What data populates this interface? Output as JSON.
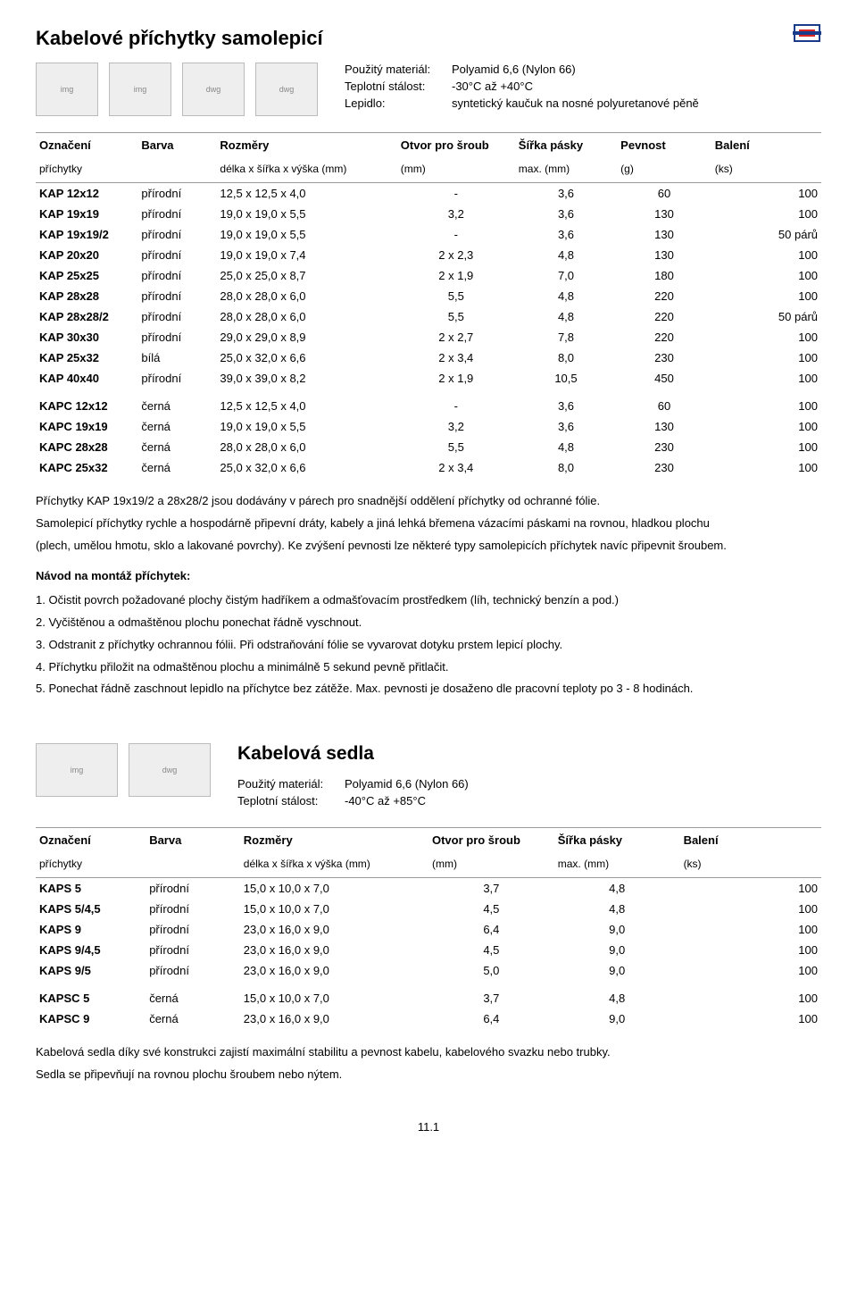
{
  "page_number": "11.1",
  "section1": {
    "title": "Kabelové příchytky samolepicí",
    "specs": [
      {
        "k": "Použitý materiál:",
        "v": "Polyamid 6,6 (Nylon 66)"
      },
      {
        "k": "Teplotní stálost:",
        "v": "-30°C až +40°C"
      },
      {
        "k": "Lepidlo:",
        "v": "syntetický kaučuk na nosné polyuretanové pěně"
      }
    ],
    "headers": [
      "Označení",
      "Barva",
      "Rozměry",
      "Otvor pro šroub",
      "Šířka pásky",
      "Pevnost",
      "Balení"
    ],
    "subheaders": [
      "příchytky",
      "",
      "délka x šířka x výška (mm)",
      "(mm)",
      "max. (mm)",
      "(g)",
      "(ks)"
    ],
    "groups": [
      [
        {
          "c": [
            "KAP 12x12",
            "přírodní",
            "12,5 x 12,5 x 4,0",
            "-",
            "3,6",
            "60",
            "100"
          ]
        },
        {
          "c": [
            "KAP 19x19",
            "přírodní",
            "19,0 x 19,0 x 5,5",
            "3,2",
            "3,6",
            "130",
            "100"
          ]
        },
        {
          "c": [
            "KAP 19x19/2",
            "přírodní",
            "19,0 x 19,0 x 5,5",
            "-",
            "3,6",
            "130",
            "50 párů"
          ]
        },
        {
          "c": [
            "KAP 20x20",
            "přírodní",
            "19,0 x 19,0 x 7,4",
            "2 x 2,3",
            "4,8",
            "130",
            "100"
          ]
        },
        {
          "c": [
            "KAP 25x25",
            "přírodní",
            "25,0 x 25,0 x 8,7",
            "2 x 1,9",
            "7,0",
            "180",
            "100"
          ]
        },
        {
          "c": [
            "KAP 28x28",
            "přírodní",
            "28,0 x 28,0 x 6,0",
            "5,5",
            "4,8",
            "220",
            "100"
          ]
        },
        {
          "c": [
            "KAP 28x28/2",
            "přírodní",
            "28,0 x 28,0 x 6,0",
            "5,5",
            "4,8",
            "220",
            "50 párů"
          ]
        },
        {
          "c": [
            "KAP 30x30",
            "přírodní",
            "29,0 x 29,0 x 8,9",
            "2 x 2,7",
            "7,8",
            "220",
            "100"
          ]
        },
        {
          "c": [
            "KAP 25x32",
            "bílá",
            "25,0 x 32,0 x 6,6",
            "2 x 3,4",
            "8,0",
            "230",
            "100"
          ]
        },
        {
          "c": [
            "KAP 40x40",
            "přírodní",
            "39,0 x 39,0 x 8,2",
            "2 x 1,9",
            "10,5",
            "450",
            "100"
          ]
        }
      ],
      [
        {
          "c": [
            "KAPC 12x12",
            "černá",
            "12,5 x 12,5 x 4,0",
            "-",
            "3,6",
            "60",
            "100"
          ]
        },
        {
          "c": [
            "KAPC 19x19",
            "černá",
            "19,0 x 19,0 x 5,5",
            "3,2",
            "3,6",
            "130",
            "100"
          ]
        },
        {
          "c": [
            "KAPC 28x28",
            "černá",
            "28,0 x 28,0 x 6,0",
            "5,5",
            "4,8",
            "230",
            "100"
          ]
        },
        {
          "c": [
            "KAPC 25x32",
            "černá",
            "25,0 x 32,0 x 6,6",
            "2 x 3,4",
            "8,0",
            "230",
            "100"
          ]
        }
      ]
    ],
    "notes_lead": [
      "Příchytky KAP 19x19/2 a 28x28/2 jsou dodávány v párech pro snadnější oddělení příchytky od ochranné fólie.",
      "Samolepicí příchytky rychle a hospodárně připevní dráty, kabely a jiná lehká břemena vázacími páskami na rovnou, hladkou plochu",
      "(plech, umělou hmotu, sklo a lakované povrchy). Ke zvýšení pevnosti lze některé typy samolepicích příchytek navíc připevnit šroubem."
    ],
    "instr_title": "Návod na montáž příchytek:",
    "instr": [
      "1. Očistit povrch požadované plochy čistým hadříkem a odmašťovacím prostředkem (líh, technický benzín a pod.)",
      "2. Vyčištěnou a odmaštěnou plochu ponechat řádně vyschnout.",
      "3. Odstranit z příchytky ochrannou fólii. Při odstraňování fólie se vyvarovat dotyku prstem lepicí plochy.",
      "4. Příchytku přiložit na odmaštěnou plochu a minimálně 5 sekund pevně přitlačit.",
      "5. Ponechat řádně zaschnout lepidlo na příchytce bez zátěže. Max. pevnosti je dosaženo dle pracovní teploty po 3 - 8 hodinách."
    ]
  },
  "section2": {
    "title": "Kabelová sedla",
    "specs": [
      {
        "k": "Použitý materiál:",
        "v": "Polyamid 6,6 (Nylon 66)"
      },
      {
        "k": "Teplotní stálost:",
        "v": "-40°C až +85°C"
      }
    ],
    "headers": [
      "Označení",
      "Barva",
      "Rozměry",
      "Otvor pro šroub",
      "Šířka pásky",
      "Balení"
    ],
    "subheaders": [
      "příchytky",
      "",
      "délka x šířka x výška (mm)",
      "(mm)",
      "max. (mm)",
      "(ks)"
    ],
    "groups": [
      [
        {
          "c": [
            "KAPS 5",
            "přírodní",
            "15,0 x 10,0 x 7,0",
            "3,7",
            "4,8",
            "100"
          ]
        },
        {
          "c": [
            "KAPS 5/4,5",
            "přírodní",
            "15,0 x 10,0 x 7,0",
            "4,5",
            "4,8",
            "100"
          ]
        },
        {
          "c": [
            "KAPS 9",
            "přírodní",
            "23,0 x 16,0 x 9,0",
            "6,4",
            "9,0",
            "100"
          ]
        },
        {
          "c": [
            "KAPS 9/4,5",
            "přírodní",
            "23,0 x 16,0 x 9,0",
            "4,5",
            "9,0",
            "100"
          ]
        },
        {
          "c": [
            "KAPS 9/5",
            "přírodní",
            "23,0 x 16,0 x 9,0",
            "5,0",
            "9,0",
            "100"
          ]
        }
      ],
      [
        {
          "c": [
            "KAPSC 5",
            "černá",
            "15,0 x 10,0 x 7,0",
            "3,7",
            "4,8",
            "100"
          ]
        },
        {
          "c": [
            "KAPSC 9",
            "černá",
            "23,0 x 16,0 x 9,0",
            "6,4",
            "9,0",
            "100"
          ]
        }
      ]
    ],
    "notes_lead": [
      "Kabelová sedla díky své konstrukci zajistí maximální stabilitu a pevnost kabelu, kabelového svazku nebo trubky.",
      "Sedla se připevňují na rovnou plochu šroubem nebo nýtem."
    ]
  },
  "col_widths_7": [
    "13%",
    "10%",
    "23%",
    "15%",
    "13%",
    "12%",
    "14%"
  ],
  "col_widths_6": [
    "14%",
    "12%",
    "24%",
    "16%",
    "16%",
    "18%"
  ],
  "col_align_7": [
    "l",
    "l",
    "l",
    "c",
    "c",
    "c",
    "r"
  ],
  "col_align_6": [
    "l",
    "l",
    "l",
    "c",
    "c",
    "r"
  ]
}
